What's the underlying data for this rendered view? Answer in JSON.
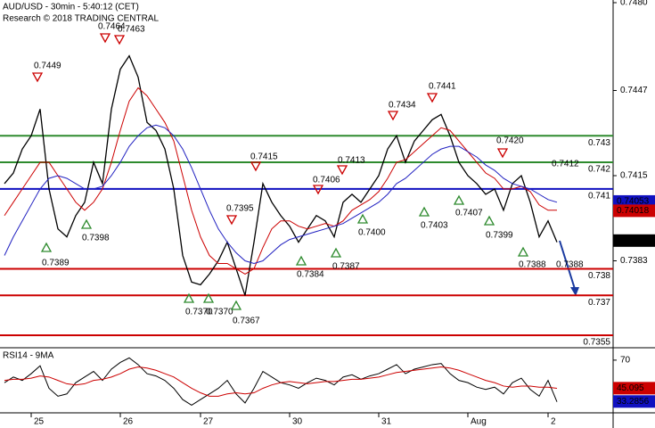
{
  "chart_data": {
    "type": "line",
    "title": "AUD/USD - 30min - 5:40:12 (CET)",
    "subtitle": "Research © 2018 TRADING CENTRAL",
    "categories": [
      null,
      null,
      null,
      "25",
      null,
      null,
      null,
      null,
      null,
      null,
      null,
      null,
      null,
      "26",
      null,
      null,
      null,
      null,
      null,
      null,
      null,
      null,
      "27",
      null,
      null,
      null,
      null,
      null,
      null,
      null,
      null,
      null,
      "30",
      null,
      null,
      null,
      null,
      null,
      null,
      null,
      null,
      null,
      "31",
      null,
      null,
      null,
      null,
      null,
      null,
      null,
      null,
      null,
      "Aug",
      null,
      null,
      null,
      null,
      null,
      null,
      null,
      null,
      "2",
      null
    ],
    "series": [
      {
        "name": "AUD/USD",
        "color": "#000000",
        "values": [
          0.7412,
          0.7416,
          0.7425,
          0.743,
          0.744,
          0.741,
          0.7395,
          0.7392,
          0.74,
          0.7405,
          0.742,
          0.7412,
          0.744,
          0.7455,
          0.746,
          0.7452,
          0.7435,
          0.7432,
          0.7425,
          0.741,
          0.7385,
          0.7375,
          0.7374,
          0.7378,
          0.7383,
          0.739,
          0.738,
          0.737,
          0.739,
          0.7412,
          0.7405,
          0.74,
          0.7396,
          0.739,
          0.7395,
          0.74,
          0.7398,
          0.7392,
          0.7405,
          0.7408,
          0.7405,
          0.741,
          0.7415,
          0.7425,
          0.743,
          0.742,
          0.7428,
          0.7432,
          0.7436,
          0.7438,
          0.743,
          0.742,
          0.7415,
          0.7412,
          0.7408,
          0.741,
          0.7402,
          0.7412,
          0.7415,
          0.7405,
          0.7392,
          0.7398,
          0.739
        ]
      },
      {
        "color": "#cc0000",
        "values": [
          0.74,
          0.7405,
          0.741,
          0.7415,
          0.742,
          0.742,
          0.7415,
          0.741,
          0.7405,
          0.7402,
          0.7405,
          0.741,
          0.742,
          0.7432,
          0.7443,
          0.7448,
          0.7445,
          0.744,
          0.7435,
          0.7428,
          0.7415,
          0.7402,
          0.7392,
          0.7385,
          0.7382,
          0.7382,
          0.738,
          0.7378,
          0.738,
          0.7388,
          0.7395,
          0.7398,
          0.7398,
          0.7396,
          0.7395,
          0.7396,
          0.7397,
          0.7396,
          0.7398,
          0.7402,
          0.7404,
          0.7406,
          0.7409,
          0.7414,
          0.742,
          0.7421,
          0.7424,
          0.7427,
          0.743,
          0.7433,
          0.7432,
          0.7428,
          0.7424,
          0.742,
          0.7416,
          0.7414,
          0.741,
          0.741,
          0.7411,
          0.7409,
          0.7404,
          0.7402,
          0.7402
        ]
      },
      {
        "color": "#2020c0",
        "values": [
          0.7385,
          0.7392,
          0.7398,
          0.7404,
          0.741,
          0.7414,
          0.7415,
          0.7414,
          0.7412,
          0.741,
          0.741,
          0.7411,
          0.7415,
          0.742,
          0.7426,
          0.743,
          0.7433,
          0.7434,
          0.7433,
          0.743,
          0.7425,
          0.7418,
          0.741,
          0.7402,
          0.7395,
          0.739,
          0.7386,
          0.7383,
          0.7382,
          0.7383,
          0.7386,
          0.7389,
          0.7391,
          0.7392,
          0.7393,
          0.7394,
          0.7395,
          0.7396,
          0.7397,
          0.7399,
          0.7401,
          0.7403,
          0.7405,
          0.7408,
          0.7412,
          0.7414,
          0.7417,
          0.742,
          0.7423,
          0.7425,
          0.7426,
          0.7426,
          0.7424,
          0.7422,
          0.7419,
          0.7417,
          0.7414,
          0.7412,
          0.7411,
          0.741,
          0.7408,
          0.7406,
          0.7405
        ]
      }
    ],
    "ylim": [
      0.7351,
      0.7481
    ],
    "yticks": [
      {
        "value": 0.748,
        "label": "0.7480"
      },
      0.7447,
      0.7415,
      0.7383
    ],
    "levels": [
      {
        "value": 0.743,
        "color": "#2e8b2e"
      },
      {
        "value": 0.742,
        "color": "#2e8b2e"
      },
      {
        "value": 0.741,
        "color": "#1010c0"
      },
      {
        "value": 0.738,
        "color": "#cc0000"
      },
      {
        "value": 0.737,
        "color": "#cc0000"
      },
      {
        "value": 0.7355,
        "color": "#cc0000"
      }
    ],
    "price_labels": [
      {
        "value": 0.74053,
        "color": "#1010c0"
      },
      {
        "value": 0.74018,
        "color": "#cc0000"
      },
      {
        "value": 0.73906,
        "color": "#000000"
      }
    ],
    "annotations": [
      "0.7449",
      "0.7464",
      "0.7463",
      "0.7398",
      "0.7389",
      "0.7415",
      "0.7395",
      "0.7370",
      "0.7370",
      "0.7367",
      "0.7384",
      "0.7406",
      "0.7413",
      "0.7387",
      "0.7400",
      "0.7434",
      "0.7441",
      "0.7403",
      "0.7407",
      "0.7420",
      "0.7399",
      "0.7412",
      "0.7388",
      "0.7388"
    ],
    "rsi": {
      "title": "RSI14 - 9MA",
      "ylim": [
        24,
        81
      ],
      "yticks": [
        70
      ],
      "series": [
        {
          "color": "#000000",
          "values": [
            50,
            55,
            52,
            58,
            65,
            45,
            38,
            40,
            50,
            55,
            60,
            52,
            62,
            68,
            72,
            66,
            58,
            56,
            52,
            45,
            35,
            30,
            35,
            40,
            45,
            52,
            40,
            32,
            45,
            60,
            55,
            50,
            48,
            45,
            50,
            54,
            52,
            48,
            55,
            57,
            53,
            56,
            58,
            62,
            66,
            58,
            62,
            64,
            66,
            67,
            58,
            52,
            50,
            46,
            44,
            46,
            40,
            50,
            54,
            44,
            38,
            52,
            33
          ]
        },
        {
          "color": "#cc0000",
          "values": [
            52,
            53,
            53,
            54,
            56,
            55,
            52,
            49,
            48,
            49,
            52,
            53,
            55,
            58,
            62,
            64,
            63,
            61,
            58,
            55,
            50,
            45,
            41,
            38,
            38,
            40,
            41,
            40,
            41,
            45,
            48,
            50,
            51,
            50,
            49,
            50,
            51,
            51,
            52,
            53,
            53,
            54,
            55,
            57,
            59,
            60,
            61,
            62,
            63,
            64,
            63,
            61,
            58,
            55,
            52,
            50,
            47,
            46,
            47,
            47,
            46,
            46,
            45
          ]
        }
      ],
      "value_labels": [
        {
          "value": 45.095,
          "color": "#cc0000"
        },
        {
          "value": 33.2856,
          "color": "#1010c0"
        }
      ]
    }
  }
}
